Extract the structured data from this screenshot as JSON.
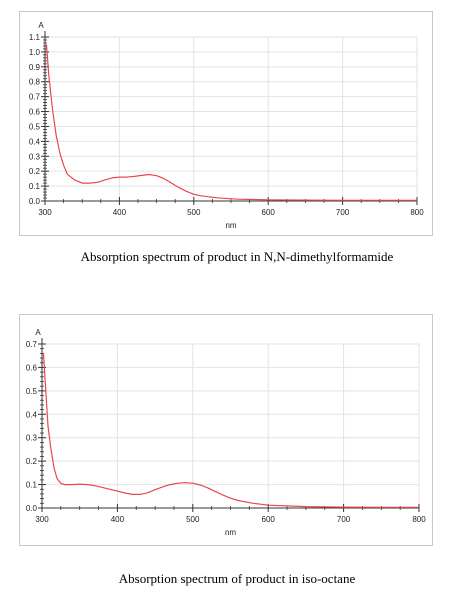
{
  "chart_data": [
    {
      "type": "line",
      "title": "",
      "xlabel": "nm",
      "ylabel": "A",
      "xlim": [
        300,
        800
      ],
      "ylim": [
        0,
        1.1
      ],
      "x_ticks": [
        300,
        400,
        500,
        600,
        700,
        800
      ],
      "y_ticks": [
        0.0,
        0.1,
        0.2,
        0.3,
        0.4,
        0.5,
        0.6,
        0.7,
        0.8,
        0.9,
        1.0,
        1.1
      ],
      "y_tick_labels": [
        "0.0",
        "0.1",
        "0.2",
        "0.3",
        "0.4",
        "0.5",
        "0.6",
        "0.7",
        "0.8",
        "0.9",
        "1.0",
        "1.1"
      ],
      "x_tick_labels": [
        "300",
        "400",
        "500",
        "600",
        "700",
        "800"
      ],
      "grid": true,
      "line_color": "#e8484b",
      "series": [
        {
          "x": [
            302,
            305,
            310,
            315,
            320,
            325,
            330,
            340,
            350,
            360,
            370,
            380,
            390,
            400,
            410,
            420,
            430,
            440,
            450,
            460,
            470,
            480,
            490,
            500,
            510,
            520,
            530,
            540,
            560,
            580,
            600,
            650,
            700,
            750,
            800
          ],
          "y": [
            1.05,
            0.85,
            0.62,
            0.44,
            0.32,
            0.24,
            0.18,
            0.14,
            0.12,
            0.12,
            0.125,
            0.14,
            0.155,
            0.16,
            0.16,
            0.165,
            0.172,
            0.178,
            0.17,
            0.15,
            0.12,
            0.09,
            0.065,
            0.045,
            0.035,
            0.028,
            0.022,
            0.018,
            0.012,
            0.01,
            0.008,
            0.006,
            0.005,
            0.005,
            0.005
          ]
        }
      ]
    },
    {
      "type": "line",
      "title": "",
      "xlabel": "nm",
      "ylabel": "A",
      "xlim": [
        300,
        800
      ],
      "ylim": [
        0,
        0.7
      ],
      "x_ticks": [
        300,
        400,
        500,
        600,
        700,
        800
      ],
      "y_ticks": [
        0.0,
        0.1,
        0.2,
        0.3,
        0.4,
        0.5,
        0.6,
        0.7
      ],
      "y_tick_labels": [
        "0.0",
        "0.1",
        "0.2",
        "0.3",
        "0.4",
        "0.5",
        "0.6",
        "0.7"
      ],
      "x_tick_labels": [
        "300",
        "400",
        "500",
        "600",
        "700",
        "800"
      ],
      "grid": true,
      "line_color": "#e8484b",
      "series": [
        {
          "x": [
            302,
            305,
            308,
            312,
            316,
            320,
            325,
            330,
            340,
            350,
            360,
            370,
            380,
            390,
            400,
            410,
            420,
            430,
            440,
            450,
            460,
            470,
            480,
            490,
            500,
            510,
            520,
            530,
            540,
            550,
            560,
            580,
            600,
            650,
            700,
            750,
            800
          ],
          "y": [
            0.66,
            0.5,
            0.35,
            0.25,
            0.17,
            0.125,
            0.105,
            0.1,
            0.1,
            0.102,
            0.1,
            0.095,
            0.088,
            0.08,
            0.072,
            0.064,
            0.058,
            0.058,
            0.065,
            0.078,
            0.09,
            0.1,
            0.106,
            0.108,
            0.106,
            0.098,
            0.086,
            0.07,
            0.055,
            0.042,
            0.032,
            0.02,
            0.012,
            0.006,
            0.004,
            0.003,
            0.003
          ]
        }
      ]
    }
  ],
  "captions": [
    "Absorption spectrum of product in N,N-dimethylformamide",
    "Absorption spectrum of product in iso-octane"
  ]
}
